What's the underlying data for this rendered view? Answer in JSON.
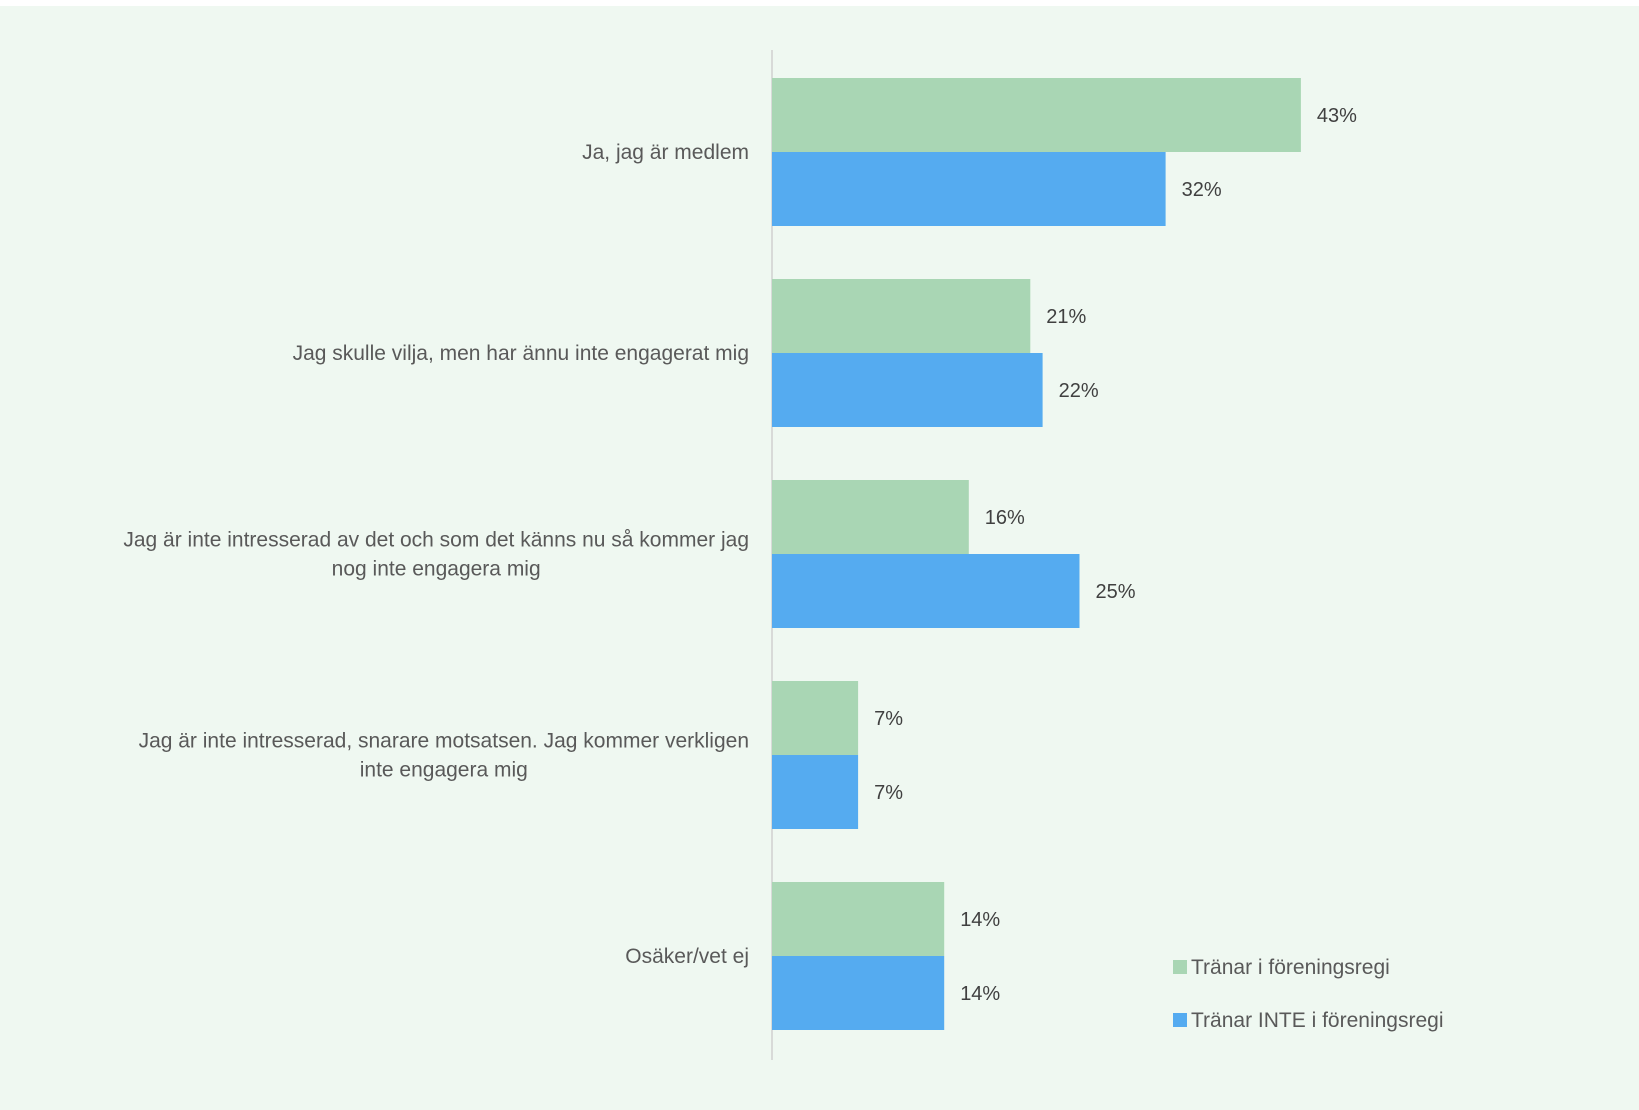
{
  "chart_data": {
    "type": "bar",
    "orientation": "horizontal",
    "categories": [
      [
        "Ja, jag är medlem"
      ],
      [
        "Jag skulle vilja, men har ännu inte engagerat mig"
      ],
      [
        "Jag är inte intresserad av det och som det känns nu så kommer jag",
        "nog inte engagera mig"
      ],
      [
        "Jag är inte intresserad, snarare motsatsen. Jag kommer verkligen",
        "inte engagera mig"
      ],
      [
        "Osäker/vet ej"
      ]
    ],
    "series": [
      {
        "name": "Tränar i föreningsregi",
        "color": "#a9d6b4",
        "values": [
          43,
          21,
          16,
          7,
          14
        ],
        "labels": [
          "43%",
          "21%",
          "16%",
          "7%",
          "14%"
        ]
      },
      {
        "name": "Tränar INTE i föreningsregi",
        "color": "#55abf0",
        "values": [
          32,
          22,
          25,
          7,
          14
        ],
        "labels": [
          "32%",
          "22%",
          "25%",
          "7%",
          "14%"
        ]
      }
    ],
    "xlim": [
      0,
      50
    ],
    "title": "",
    "xlabel": "",
    "ylabel": "",
    "grid": false,
    "legend_position": "bottom-right"
  }
}
